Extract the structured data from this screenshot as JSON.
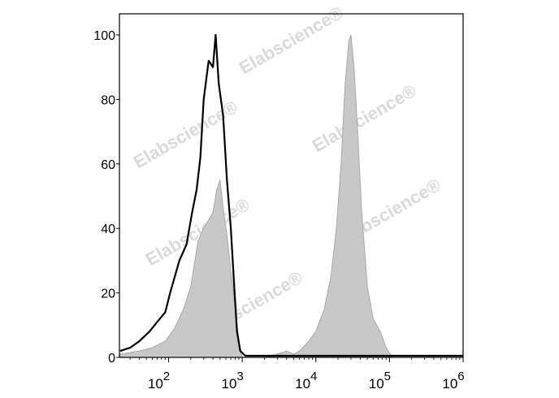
{
  "chart_data": {
    "type": "area",
    "title": "",
    "xlabel": "",
    "ylabel": "",
    "x_scale": "log",
    "xlim": [
      21.5,
      1000000
    ],
    "ylim": [
      0,
      100
    ],
    "grid": false,
    "legend": "none",
    "y_ticks": [
      "0",
      "20",
      "40",
      "60",
      "80",
      "100"
    ],
    "y_tick_values": [
      0,
      20,
      40,
      60,
      80,
      100
    ],
    "x_ticks": [
      {
        "base": "10",
        "exp": "2",
        "value": 100
      },
      {
        "base": "10",
        "exp": "3",
        "value": 1000
      },
      {
        "base": "10",
        "exp": "4",
        "value": 10000
      },
      {
        "base": "10",
        "exp": "5",
        "value": 100000
      },
      {
        "base": "10",
        "exp": "6",
        "value": 1000000
      }
    ],
    "series": [
      {
        "style": "filled",
        "color": "#c8c8c8",
        "stroke": "#a8a8a8",
        "points": [
          [
            22,
            1
          ],
          [
            40,
            2
          ],
          [
            60,
            3
          ],
          [
            90,
            5
          ],
          [
            120,
            9
          ],
          [
            160,
            15
          ],
          [
            200,
            22
          ],
          [
            250,
            36
          ],
          [
            300,
            40
          ],
          [
            400,
            45
          ],
          [
            450,
            52
          ],
          [
            500,
            55
          ],
          [
            560,
            45
          ],
          [
            620,
            38
          ],
          [
            700,
            27
          ],
          [
            760,
            20
          ],
          [
            850,
            10
          ],
          [
            920,
            4
          ],
          [
            1000,
            0
          ],
          [
            2000,
            0
          ],
          [
            3000,
            1
          ],
          [
            4000,
            2
          ],
          [
            5000,
            1
          ],
          [
            6000,
            2
          ],
          [
            8000,
            5
          ],
          [
            10000,
            8
          ],
          [
            13000,
            15
          ],
          [
            16000,
            25
          ],
          [
            19000,
            40
          ],
          [
            22000,
            60
          ],
          [
            25000,
            85
          ],
          [
            28000,
            98
          ],
          [
            30000,
            100
          ],
          [
            33000,
            90
          ],
          [
            37000,
            70
          ],
          [
            42000,
            45
          ],
          [
            50000,
            22
          ],
          [
            60000,
            12
          ],
          [
            75000,
            8
          ],
          [
            90000,
            3
          ],
          [
            110000,
            0
          ],
          [
            1000000,
            0
          ]
        ]
      },
      {
        "style": "line",
        "color": "#000000",
        "points": [
          [
            22,
            2
          ],
          [
            30,
            3
          ],
          [
            40,
            5
          ],
          [
            55,
            8
          ],
          [
            70,
            11
          ],
          [
            90,
            14
          ],
          [
            105,
            20
          ],
          [
            140,
            30
          ],
          [
            175,
            35
          ],
          [
            209,
            45
          ],
          [
            240,
            52
          ],
          [
            270,
            62
          ],
          [
            300,
            80
          ],
          [
            350,
            92
          ],
          [
            400,
            90
          ],
          [
            435,
            100
          ],
          [
            480,
            85
          ],
          [
            550,
            75
          ],
          [
            620,
            55
          ],
          [
            700,
            40
          ],
          [
            780,
            22
          ],
          [
            850,
            8
          ],
          [
            940,
            2
          ],
          [
            1100,
            0.5
          ],
          [
            1000000,
            0.5
          ]
        ]
      }
    ]
  },
  "watermark": {
    "text": "Elabscience®",
    "color": "#d9d9d9"
  }
}
